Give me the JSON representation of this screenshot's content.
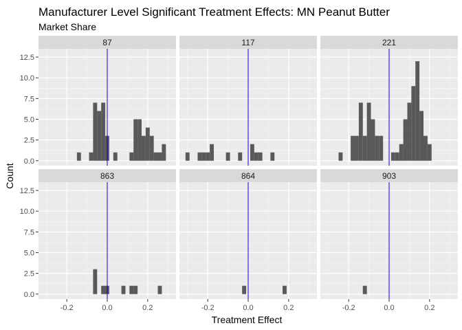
{
  "chart_data": {
    "type": "bar",
    "title": "Manufacturer Level Significant Treatment Effects: MN Peanut Butter",
    "subtitle": "Market Share",
    "xlabel": "Treatment Effect",
    "ylabel": "Count",
    "xlim": [
      -0.34,
      0.34
    ],
    "ylim": [
      -0.6,
      13.5
    ],
    "x_ticks": [
      -0.2,
      0.0,
      0.2
    ],
    "x_tick_labels": [
      "-0.2",
      "0.0",
      "0.2"
    ],
    "y_ticks": [
      0,
      2.5,
      5,
      7.5,
      10,
      12.5
    ],
    "y_tick_labels": [
      "0.0",
      "2.5",
      "5.0",
      "7.5",
      "10.0",
      "12.5"
    ],
    "bin_width": 0.02,
    "vline_x": 0,
    "vline_color": "#0000cc",
    "bar_color": "#595959",
    "panel_bg": "#ebebeb",
    "strip_bg": "#d9d9d9",
    "grid": true,
    "facets": [
      {
        "label": "87",
        "bins": [
          {
            "x": -0.14,
            "count": 1
          },
          {
            "x": -0.08,
            "count": 1
          },
          {
            "x": -0.06,
            "count": 7
          },
          {
            "x": -0.04,
            "count": 6
          },
          {
            "x": -0.02,
            "count": 7
          },
          {
            "x": 0.0,
            "count": 3
          },
          {
            "x": 0.04,
            "count": 1
          },
          {
            "x": 0.12,
            "count": 1
          },
          {
            "x": 0.14,
            "count": 5
          },
          {
            "x": 0.16,
            "count": 5
          },
          {
            "x": 0.18,
            "count": 3
          },
          {
            "x": 0.2,
            "count": 4
          },
          {
            "x": 0.22,
            "count": 3
          },
          {
            "x": 0.24,
            "count": 1
          },
          {
            "x": 0.26,
            "count": 1
          },
          {
            "x": 0.28,
            "count": 2
          }
        ]
      },
      {
        "label": "117",
        "bins": [
          {
            "x": -0.3,
            "count": 1
          },
          {
            "x": -0.24,
            "count": 1
          },
          {
            "x": -0.22,
            "count": 1
          },
          {
            "x": -0.2,
            "count": 1
          },
          {
            "x": -0.18,
            "count": 2
          },
          {
            "x": -0.1,
            "count": 1
          },
          {
            "x": -0.04,
            "count": 1
          },
          {
            "x": 0.02,
            "count": 2
          },
          {
            "x": 0.04,
            "count": 1
          },
          {
            "x": 0.06,
            "count": 1
          },
          {
            "x": 0.12,
            "count": 1
          }
        ]
      },
      {
        "label": "221",
        "bins": [
          {
            "x": -0.24,
            "count": 1
          },
          {
            "x": -0.18,
            "count": 3
          },
          {
            "x": -0.16,
            "count": 3
          },
          {
            "x": -0.14,
            "count": 7
          },
          {
            "x": -0.12,
            "count": 3
          },
          {
            "x": -0.1,
            "count": 7
          },
          {
            "x": -0.08,
            "count": 5
          },
          {
            "x": -0.06,
            "count": 3
          },
          {
            "x": -0.04,
            "count": 3
          },
          {
            "x": 0.02,
            "count": 1
          },
          {
            "x": 0.04,
            "count": 1
          },
          {
            "x": 0.06,
            "count": 2
          },
          {
            "x": 0.08,
            "count": 5
          },
          {
            "x": 0.1,
            "count": 7
          },
          {
            "x": 0.12,
            "count": 9
          },
          {
            "x": 0.14,
            "count": 12
          },
          {
            "x": 0.16,
            "count": 6
          },
          {
            "x": 0.18,
            "count": 3
          },
          {
            "x": 0.2,
            "count": 2
          }
        ]
      },
      {
        "label": "863",
        "bins": [
          {
            "x": -0.06,
            "count": 3
          },
          {
            "x": -0.02,
            "count": 1
          },
          {
            "x": 0.0,
            "count": 1
          },
          {
            "x": 0.08,
            "count": 1
          },
          {
            "x": 0.12,
            "count": 1
          },
          {
            "x": 0.14,
            "count": 1
          },
          {
            "x": 0.26,
            "count": 1
          }
        ]
      },
      {
        "label": "864",
        "bins": [
          {
            "x": -0.02,
            "count": 1
          },
          {
            "x": 0.18,
            "count": 1
          }
        ]
      },
      {
        "label": "903",
        "bins": [
          {
            "x": -0.12,
            "count": 1
          }
        ]
      }
    ]
  }
}
